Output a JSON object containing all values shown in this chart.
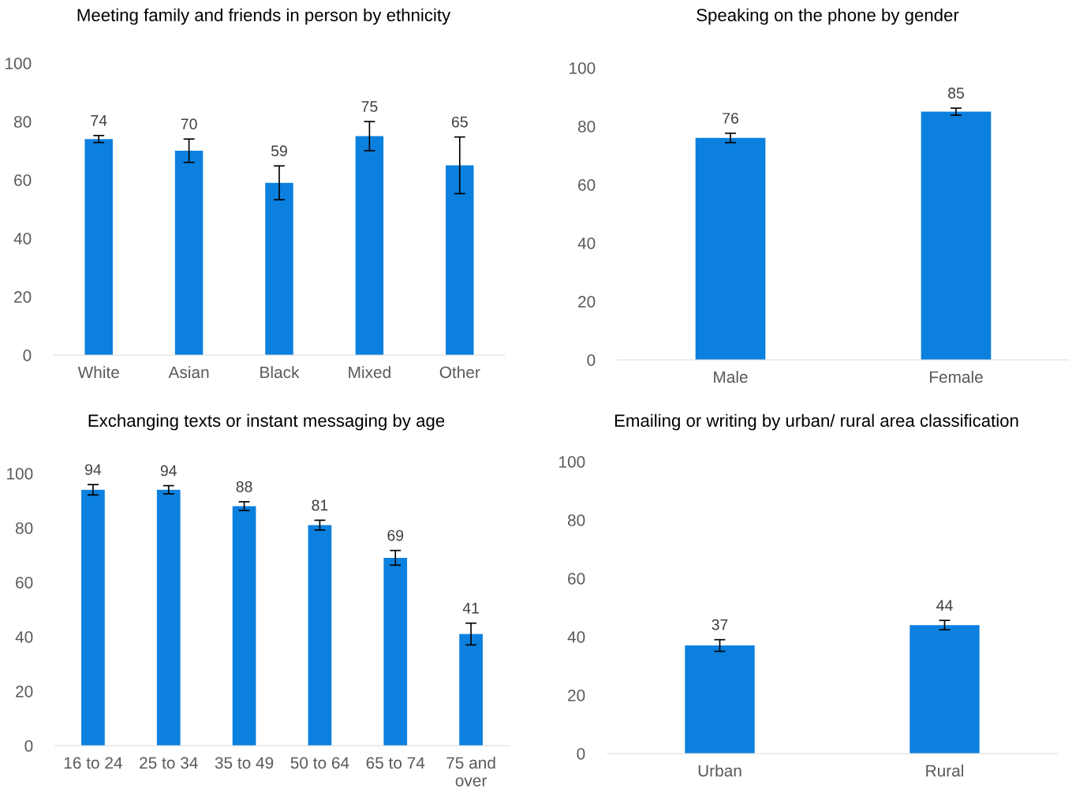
{
  "chart_data": [
    {
      "type": "bar",
      "title": "Meeting family and friends in person by ethnicity",
      "categories": [
        "White",
        "Asian",
        "Black",
        "Mixed",
        "Other"
      ],
      "values": [
        74,
        70,
        59,
        75,
        65
      ],
      "errors": [
        1.2,
        4,
        5.8,
        5,
        9.7
      ],
      "color": "#0b80de",
      "ylim": [
        0,
        100
      ],
      "yticks": [
        0,
        20,
        40,
        60,
        80,
        100
      ],
      "data_labels": true,
      "grid": false,
      "legend": false
    },
    {
      "type": "bar",
      "title": "Speaking on the phone by gender",
      "categories": [
        "Male",
        "Female"
      ],
      "values": [
        76,
        85
      ],
      "errors": [
        1.6,
        1.2
      ],
      "color": "#0b80de",
      "ylim": [
        0,
        100
      ],
      "yticks": [
        0,
        20,
        40,
        60,
        80,
        100
      ],
      "data_labels": true,
      "grid": false,
      "legend": false
    },
    {
      "type": "bar",
      "title": "Exchanging texts or instant messaging by age",
      "categories": [
        "16 to 24",
        "25 to 34",
        "35 to 49",
        "50 to 64",
        "65 to 74",
        "75 and\nover"
      ],
      "values": [
        94,
        94,
        88,
        81,
        69,
        41
      ],
      "errors": [
        1.9,
        1.5,
        1.6,
        1.8,
        2.7,
        4
      ],
      "color": "#0b80de",
      "ylim": [
        0,
        100
      ],
      "yticks": [
        0,
        20,
        40,
        60,
        80,
        100
      ],
      "data_labels": true,
      "grid": false,
      "legend": false
    },
    {
      "type": "bar",
      "title": "Emailing or writing by urban/ rural area classification",
      "categories": [
        "Urban",
        "Rural"
      ],
      "values": [
        37,
        44
      ],
      "errors": [
        2,
        1.6
      ],
      "color": "#0b80de",
      "ylim": [
        0,
        100
      ],
      "yticks": [
        0,
        20,
        40,
        60,
        80,
        100
      ],
      "data_labels": true,
      "grid": false,
      "legend": false
    }
  ]
}
